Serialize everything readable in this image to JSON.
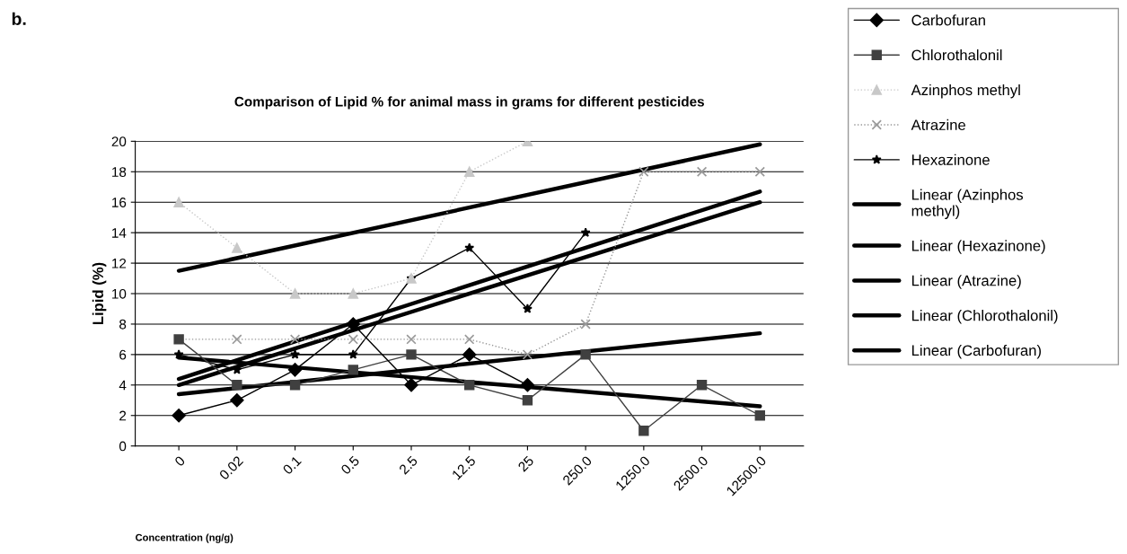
{
  "chart_data": {
    "type": "line",
    "title": "Comparison of Lipid % for animal mass in grams for different pesticides",
    "xlabel": "Concentration (ng/g)",
    "ylabel": "Lipid (%)",
    "annotations": [
      "b."
    ],
    "categories": [
      "0",
      "0.02",
      "0.1",
      "0.5",
      "2.5",
      "12.5",
      "25",
      "250.0",
      "1250.0",
      "2500.0",
      "12500.0"
    ],
    "series": [
      {
        "name": "Carbofuran",
        "color": "#000000",
        "marker": "diamond",
        "line_style": "solid",
        "values": [
          2,
          3,
          5,
          8,
          4,
          6,
          4,
          null,
          null,
          null,
          null
        ]
      },
      {
        "name": "Chlorothalonil",
        "color": "#404040",
        "marker": "square",
        "line_style": "solid",
        "values": [
          7,
          4,
          4,
          5,
          6,
          4,
          3,
          6,
          1,
          4,
          2
        ]
      },
      {
        "name": "Azinphos methyl",
        "color": "#c8c8c8",
        "marker": "triangle",
        "line_style": "dotted",
        "values": [
          16,
          13,
          10,
          10,
          11,
          18,
          20,
          null,
          null,
          null,
          null
        ]
      },
      {
        "name": "Atrazine",
        "color": "#999999",
        "marker": "cross",
        "line_style": "dotted",
        "values": [
          7,
          7,
          7,
          7,
          7,
          7,
          6,
          8,
          18,
          18,
          18
        ]
      },
      {
        "name": "Hexazinone",
        "color": "#000000",
        "marker": "star",
        "line_style": "solid",
        "values": [
          6,
          5,
          6,
          6,
          11,
          13,
          9,
          14,
          null,
          null,
          null
        ]
      },
      {
        "name": "Linear (Azinphos methyl)",
        "color": "#000000",
        "marker": "none",
        "line_style": "solid",
        "x": [
          "0",
          "12500.0"
        ],
        "values": [
          11.5,
          19.8
        ]
      },
      {
        "name": "Linear (Hexazinone)",
        "color": "#000000",
        "marker": "none",
        "line_style": "solid",
        "x": [
          "0",
          "12500.0"
        ],
        "values": [
          4.4,
          16.7
        ]
      },
      {
        "name": "Linear (Atrazine)",
        "color": "#000000",
        "marker": "none",
        "line_style": "solid",
        "x": [
          "0",
          "12500.0"
        ],
        "values": [
          4.0,
          16.0
        ]
      },
      {
        "name": "Linear (Chlorothalonil)",
        "color": "#000000",
        "marker": "none",
        "line_style": "solid",
        "x": [
          "0",
          "12500.0"
        ],
        "values": [
          3.4,
          7.4
        ]
      },
      {
        "name": "Linear (Carbofuran)",
        "color": "#000000",
        "marker": "none",
        "line_style": "solid",
        "x": [
          "0",
          "12500.0"
        ],
        "values": [
          5.8,
          2.6
        ]
      }
    ],
    "ylim": [
      0,
      20
    ],
    "yticks": [
      0,
      2,
      4,
      6,
      8,
      10,
      12,
      14,
      16,
      18,
      20
    ],
    "grid": "y",
    "legend": "right"
  }
}
